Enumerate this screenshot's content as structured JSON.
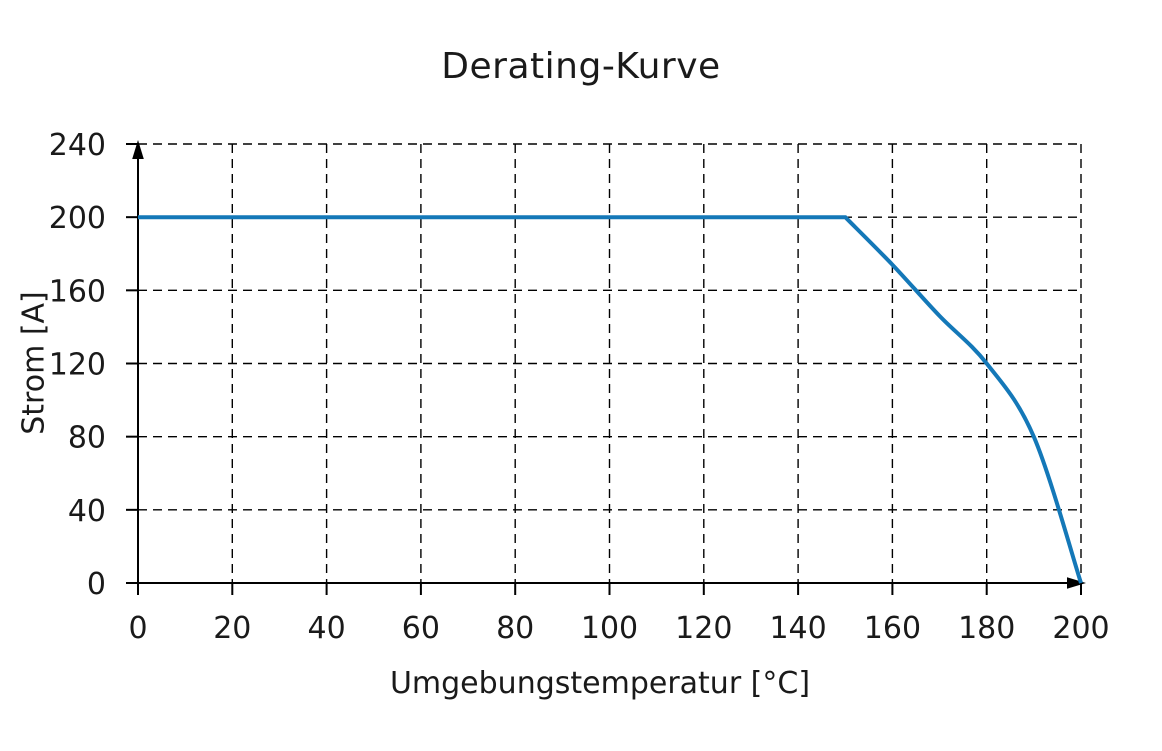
{
  "chart_data": {
    "type": "line",
    "title": "Derating-Kurve",
    "xlabel": "Umgebungstemperatur [°C]",
    "ylabel": "Strom [A]",
    "xlim": [
      0,
      200
    ],
    "ylim": [
      0,
      240
    ],
    "xticks": [
      0,
      20,
      40,
      60,
      80,
      100,
      120,
      140,
      160,
      180,
      200
    ],
    "yticks": [
      0,
      40,
      80,
      120,
      160,
      200,
      240
    ],
    "grid": "dashed",
    "axis_arrows": true,
    "legend": "none",
    "colors": {
      "line": "#1478B8",
      "grid": "#000000",
      "text": "#1a1a1a",
      "background": "#ffffff"
    },
    "series": [
      {
        "name": "Derating",
        "color": "#1478B8",
        "flat_until_x": 150,
        "points": [
          [
            0,
            200
          ],
          [
            150,
            200
          ],
          [
            160,
            174
          ],
          [
            170,
            146
          ],
          [
            180,
            120
          ],
          [
            190,
            80
          ],
          [
            200,
            0
          ]
        ]
      }
    ]
  }
}
